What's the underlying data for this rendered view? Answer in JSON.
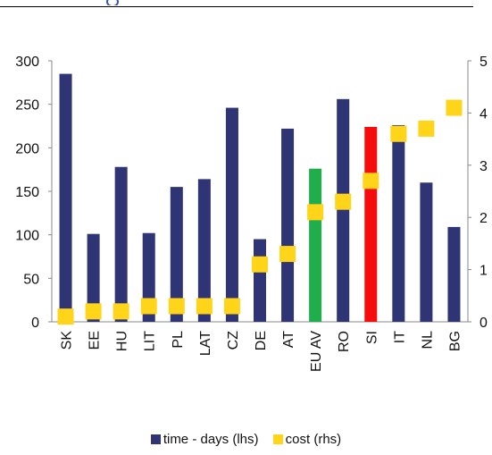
{
  "colors": {
    "bar": "#2e3474",
    "eu_av": "#1fae4b",
    "si": "#f50d0d",
    "marker": "#ffd419"
  },
  "chart_data": {
    "type": "bar",
    "categories": [
      "SK",
      "EE",
      "HU",
      "LIT",
      "PL",
      "LAT",
      "CZ",
      "DE",
      "AT",
      "EU AV",
      "RO",
      "SI",
      "IT",
      "NL",
      "BG"
    ],
    "series": [
      {
        "name": "time - days (lhs)",
        "axis": "left",
        "type": "bar",
        "values": [
          285,
          101,
          178,
          102,
          155,
          164,
          246,
          95,
          222,
          176,
          256,
          224,
          226,
          160,
          109
        ],
        "highlight": {
          "EU AV": "#1fae4b",
          "SI": "#f50d0d"
        }
      },
      {
        "name": "cost (rhs)",
        "axis": "right",
        "type": "scatter",
        "marker": "square",
        "values": [
          0.1,
          0.2,
          0.2,
          0.3,
          0.3,
          0.3,
          0.3,
          1.1,
          1.3,
          2.1,
          2.3,
          2.7,
          3.6,
          3.7,
          4.1
        ]
      }
    ],
    "ylim_left": [
      0,
      300
    ],
    "yticks_left": [
      "0",
      "50",
      "100",
      "150",
      "200",
      "250",
      "300"
    ],
    "ylim_right": [
      0,
      5
    ],
    "yticks_right": [
      "0",
      "1",
      "2",
      "3",
      "4",
      "5"
    ],
    "legend": {
      "position": "bottom",
      "items": [
        "time - days (lhs)",
        "cost (rhs)"
      ]
    },
    "grid": false
  }
}
